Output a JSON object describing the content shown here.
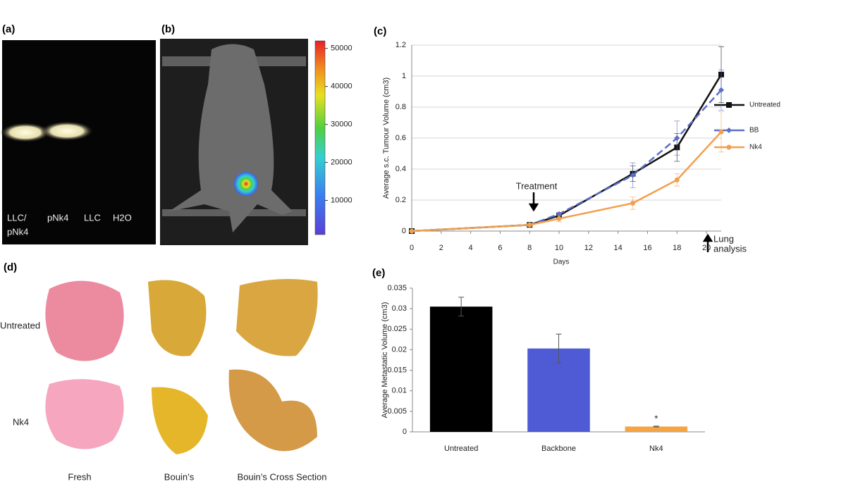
{
  "panel_a": {
    "label": "(a)",
    "lanes": [
      [
        "LLC/",
        "pNk4"
      ],
      [
        "pNk4"
      ],
      [
        "LLC"
      ],
      [
        "H2O"
      ]
    ]
  },
  "panel_b": {
    "label": "(b)",
    "colorbar": {
      "lim": [
        1000,
        52000
      ],
      "ticks": [
        10000,
        20000,
        30000,
        40000,
        50000
      ]
    }
  },
  "panel_d": {
    "label": "(d)",
    "rows": [
      "Untreated",
      "Nk4"
    ],
    "columns": [
      "Fresh",
      "Bouin’s",
      "Bouin’s Cross Section"
    ]
  },
  "chart_data": [
    {
      "type": "line",
      "label": "(c)",
      "xlabel": "Days",
      "ylabel": "Average s.c. Tumour Volume (cm3)",
      "x": [
        0,
        8,
        10,
        15,
        18,
        21
      ],
      "xlim": [
        0,
        21
      ],
      "xticks": [
        0,
        2,
        4,
        6,
        8,
        10,
        12,
        14,
        16,
        18,
        20
      ],
      "ylim": [
        0,
        1.2
      ],
      "yticks": [
        0,
        0.2,
        0.4,
        0.6,
        0.8,
        1,
        1.2
      ],
      "grid": true,
      "series": [
        {
          "name": "Untreated",
          "color": "#111111",
          "marker": "square",
          "linestyle": "solid",
          "values": [
            0,
            0.04,
            0.1,
            0.37,
            0.54,
            1.01
          ],
          "errors": [
            0,
            0.01,
            0.01,
            0.05,
            0.09,
            0.18
          ]
        },
        {
          "name": "BB",
          "color": "#5b6ec8",
          "marker": "diamond",
          "linestyle": "dashed",
          "values": [
            0,
            0.04,
            0.11,
            0.36,
            0.6,
            0.91
          ],
          "errors": [
            0,
            0.01,
            0.01,
            0.08,
            0.11,
            0.13
          ]
        },
        {
          "name": "Nk4",
          "color": "#f2a04e",
          "marker": "circle",
          "linestyle": "solid",
          "values": [
            0,
            0.04,
            0.08,
            0.18,
            0.33,
            0.64
          ],
          "errors": [
            0,
            0.01,
            0.02,
            0.04,
            0.04,
            0.13
          ]
        }
      ],
      "annotations": [
        {
          "lines": [
            "Treatment"
          ]
        },
        {
          "lines": [
            "Lung",
            "analysis"
          ]
        }
      ]
    },
    {
      "type": "bar",
      "label": "(e)",
      "ylabel": "Average Metastatic Volume (cm3)",
      "categories": [
        "Untreated",
        "Backbone",
        "Nk4"
      ],
      "values": [
        0.0305,
        0.0203,
        0.0013
      ],
      "errors": [
        0.0023,
        0.0035,
        0.0001
      ],
      "colors": [
        "#000000",
        "#4f5bd5",
        "#f4a443"
      ],
      "ylim": [
        0,
        0.035
      ],
      "yticks": [
        0,
        0.005,
        0.01,
        0.015,
        0.02,
        0.025,
        0.03,
        0.035
      ],
      "annotations": [
        "*"
      ]
    }
  ]
}
